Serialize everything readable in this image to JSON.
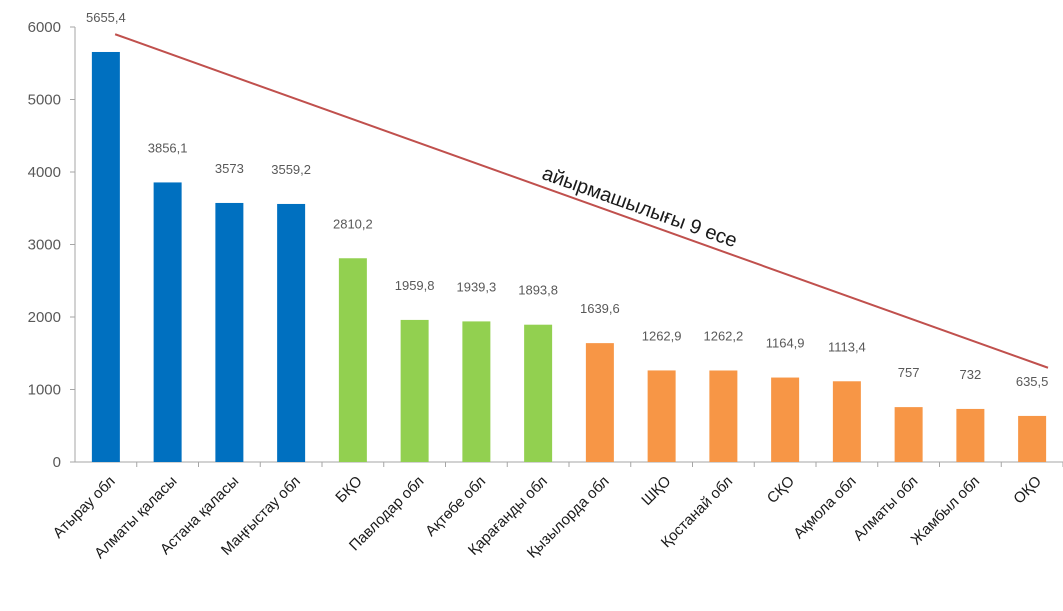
{
  "chart_data": {
    "type": "bar",
    "categories": [
      "Атырау обл",
      "Алматы қаласы",
      "Астана қаласы",
      "Маңғыстау обл",
      "БҚО",
      "Павлодар обл",
      "Ақтөбе обл",
      "Қарағанды обл",
      "Қызылорда обл",
      "ШҚО",
      "Қостанай обл",
      "СҚО",
      "Ақмола обл",
      "Алматы обл",
      "Жамбыл обл",
      "ОҚО"
    ],
    "values": [
      5655.4,
      3856.1,
      3573,
      3559.2,
      2810.2,
      1959.8,
      1939.3,
      1893.8,
      1639.6,
      1262.9,
      1262.2,
      1164.9,
      1113.4,
      757,
      732,
      635.5
    ],
    "data_labels": [
      "5655,4",
      "3856,1",
      "3573",
      "3559,2",
      "2810,2",
      "1959,8",
      "1939,3",
      "1893,8",
      "1639,6",
      "1262,9",
      "1262,2",
      "1164,9",
      "1113,4",
      "757",
      "732",
      "635,5"
    ],
    "bar_colors": [
      "#0070c0",
      "#0070c0",
      "#0070c0",
      "#0070c0",
      "#92d050",
      "#92d050",
      "#92d050",
      "#92d050",
      "#f79646",
      "#f79646",
      "#f79646",
      "#f79646",
      "#f79646",
      "#f79646",
      "#f79646",
      "#f79646"
    ],
    "yticks": [
      "0",
      "1000",
      "2000",
      "3000",
      "4000",
      "5000",
      "6000"
    ],
    "ylim": [
      0,
      6000
    ],
    "title": "",
    "xlabel": "",
    "ylabel": "",
    "grid": false,
    "legend": "none",
    "annotation": {
      "text": "айырмашылығы 9 есе",
      "line_color": "#c0504d",
      "from_value": 5900,
      "to_value": 1300
    }
  }
}
